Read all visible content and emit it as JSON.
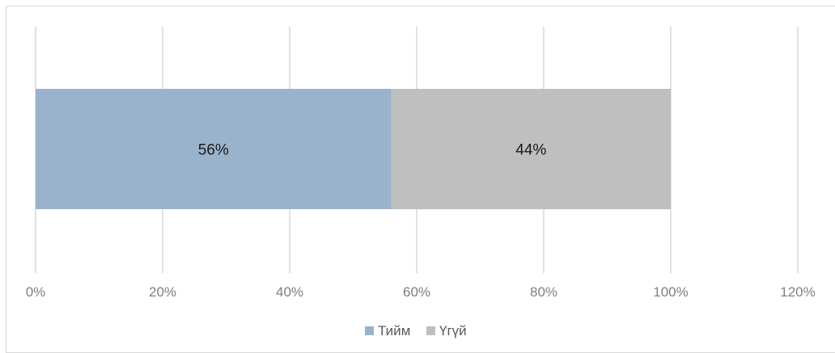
{
  "chart_data": {
    "type": "bar",
    "orientation": "horizontal",
    "stacked": true,
    "categories": [
      ""
    ],
    "series": [
      {
        "name": "Тийм",
        "values": [
          56
        ],
        "color": "#9ab3cc",
        "data_label": "56%"
      },
      {
        "name": "Үгүй",
        "values": [
          44
        ],
        "color": "#bfbfbf",
        "data_label": "44%"
      }
    ],
    "xlim": [
      0,
      120
    ],
    "x_ticks": [
      0,
      20,
      40,
      60,
      80,
      100,
      120
    ],
    "x_tick_labels": [
      "0%",
      "20%",
      "40%",
      "60%",
      "80%",
      "100%",
      "120%"
    ],
    "grid": "vertical",
    "legend": "bottom-center",
    "title": "",
    "xlabel": "",
    "ylabel": "",
    "gridline_color": "#d9d9d9"
  }
}
